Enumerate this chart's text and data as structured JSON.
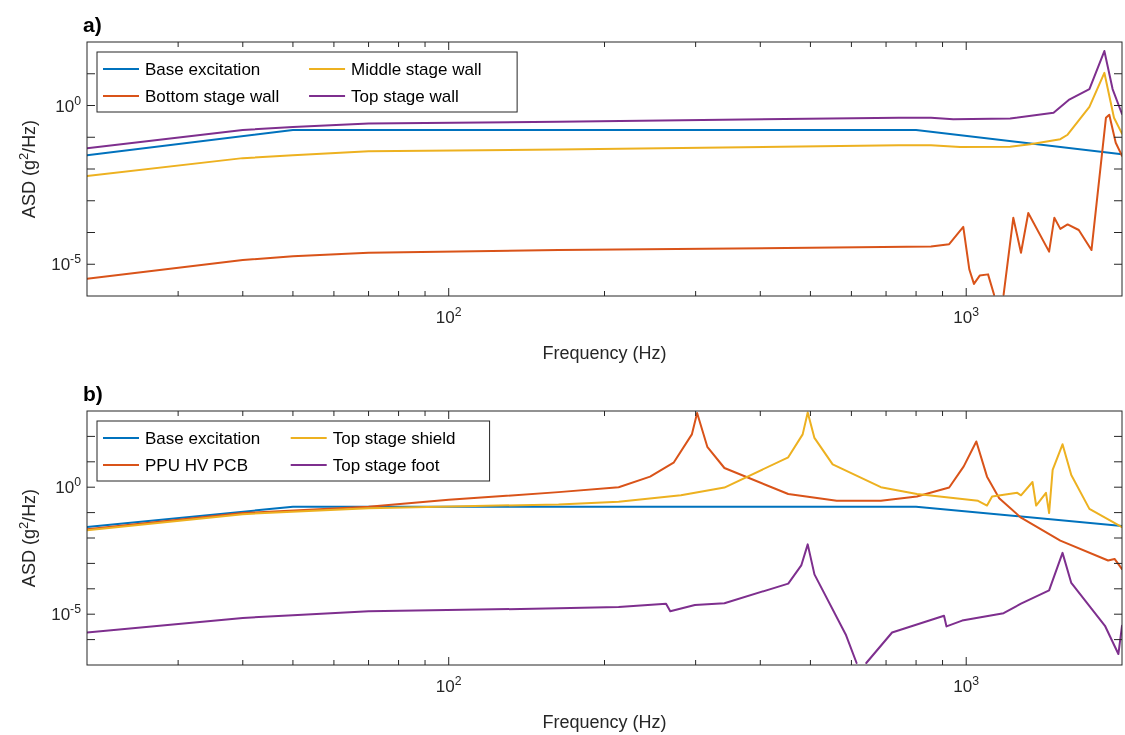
{
  "chart_data": [
    {
      "type": "line",
      "title": "a)",
      "xlabel": "Frequency (Hz)",
      "ylabel": "ASD (g$^{2}$/Hz)",
      "log": "xy",
      "grid": false,
      "legend": "top left",
      "xlim": [
        20,
        2000
      ],
      "ylim": [
        1e-06,
        100
      ],
      "xticks": [
        {
          "value": 30,
          "label": null
        },
        {
          "value": 40,
          "label": null
        },
        {
          "value": 50,
          "label": null
        },
        {
          "value": 60,
          "label": null
        },
        {
          "value": 70,
          "label": null
        },
        {
          "value": 80,
          "label": null
        },
        {
          "value": 90,
          "label": null
        },
        {
          "value": 100,
          "label": "10$^{2}$"
        },
        {
          "value": 200,
          "label": null
        },
        {
          "value": 300,
          "label": null
        },
        {
          "value": 400,
          "label": null
        },
        {
          "value": 500,
          "label": null
        },
        {
          "value": 600,
          "label": null
        },
        {
          "value": 700,
          "label": null
        },
        {
          "value": 800,
          "label": null
        },
        {
          "value": 900,
          "label": null
        },
        {
          "value": 1000,
          "label": "10$^{3}$"
        }
      ],
      "yticks": [
        {
          "value": 1e-05,
          "label": "10$^{-5}$"
        },
        {
          "value": 0.0001,
          "label": null
        },
        {
          "value": 0.001,
          "label": null
        },
        {
          "value": 0.01,
          "label": null
        },
        {
          "value": 0.1,
          "label": null
        },
        {
          "value": 1,
          "label": "10$^{0}$"
        },
        {
          "value": 10,
          "label": null
        }
      ],
      "series": [
        {
          "name": "Base excitation",
          "color": "#0072bd",
          "x": [
            20,
            50,
            800,
            2000
          ],
          "values": [
            0.027,
            0.17,
            0.17,
            0.029
          ]
        },
        {
          "name": "Bottom stage wall",
          "color": "#d95319",
          "x": [
            20,
            40,
            50,
            70,
            163,
            855,
            927,
            987,
            1014,
            1035,
            1062,
            1102,
            1132,
            1160,
            1181,
            1233,
            1276,
            1318,
            1446,
            1480,
            1520,
            1570,
            1650,
            1746,
            1862,
            1890,
            1945,
            2000
          ],
          "values": [
            3.5e-06,
            1.35e-05,
            1.8e-05,
            2.3e-05,
            2.8e-05,
            3.6e-05,
            4.3e-05,
            0.00015,
            6.8e-06,
            2.4e-06,
            4.4e-06,
            4.8e-06,
            1.1e-06,
            null,
            1.1e-06,
            0.00029,
            2.3e-05,
            0.00041,
            2.5e-05,
            0.00029,
            0.00013,
            0.00018,
            0.00012,
            2.8e-05,
            0.41,
            0.51,
            0.067,
            0.026
          ]
        },
        {
          "name": "Middle stage wall",
          "color": "#edb120",
          "x": [
            20,
            40,
            50,
            70,
            163,
            741,
            855,
            973,
            1216,
            1330,
            1520,
            1570,
            1730,
            1849,
            1930,
            2000
          ],
          "values": [
            0.006,
            0.022,
            0.027,
            0.036,
            0.041,
            0.056,
            0.056,
            0.049,
            0.05,
            0.06,
            0.087,
            0.12,
            0.91,
            10.7,
            0.41,
            0.13
          ]
        },
        {
          "name": "Top stage wall",
          "color": "#7e2f8e",
          "x": [
            20,
            40,
            50,
            70,
            163,
            741,
            855,
            944,
            1216,
            1475,
            1578,
            1730,
            1849,
            1918,
            2000
          ],
          "values": [
            0.045,
            0.17,
            0.21,
            0.27,
            0.31,
            0.41,
            0.41,
            0.37,
            0.39,
            0.59,
            1.5,
            3.3,
            52,
            3.3,
            0.54
          ]
        }
      ]
    },
    {
      "type": "line",
      "title": "b)",
      "xlabel": "Frequency (Hz)",
      "ylabel": "ASD (g$^{2}$/Hz)",
      "log": "xy",
      "grid": false,
      "legend": "top left",
      "xlim": [
        20,
        2000
      ],
      "ylim": [
        1e-07,
        1000
      ],
      "xticks": [
        {
          "value": 30,
          "label": null
        },
        {
          "value": 40,
          "label": null
        },
        {
          "value": 50,
          "label": null
        },
        {
          "value": 60,
          "label": null
        },
        {
          "value": 70,
          "label": null
        },
        {
          "value": 80,
          "label": null
        },
        {
          "value": 90,
          "label": null
        },
        {
          "value": 100,
          "label": "10$^{2}$"
        },
        {
          "value": 200,
          "label": null
        },
        {
          "value": 300,
          "label": null
        },
        {
          "value": 400,
          "label": null
        },
        {
          "value": 500,
          "label": null
        },
        {
          "value": 600,
          "label": null
        },
        {
          "value": 700,
          "label": null
        },
        {
          "value": 800,
          "label": null
        },
        {
          "value": 900,
          "label": null
        },
        {
          "value": 1000,
          "label": "10$^{3}$"
        }
      ],
      "yticks": [
        {
          "value": 1e-06,
          "label": null
        },
        {
          "value": 1e-05,
          "label": "10$^{-5}$"
        },
        {
          "value": 0.0001,
          "label": null
        },
        {
          "value": 0.001,
          "label": null
        },
        {
          "value": 0.01,
          "label": null
        },
        {
          "value": 0.1,
          "label": null
        },
        {
          "value": 1,
          "label": "10$^{0}$"
        },
        {
          "value": 10,
          "label": null
        },
        {
          "value": 100,
          "label": null
        }
      ],
      "series": [
        {
          "name": "Base excitation",
          "color": "#0072bd",
          "x": [
            20,
            50,
            800,
            2000
          ],
          "values": [
            0.027,
            0.17,
            0.17,
            0.03
          ]
        },
        {
          "name": "PPU HV PCB",
          "color": "#d95319",
          "x": [
            20,
            40,
            70,
            100,
            163,
            213,
            245,
            272,
            295,
            302,
            316,
            341,
            453,
            562,
            684,
            803,
            927,
            989,
            1046,
            1097,
            1158,
            1276,
            1520,
            1880,
            1935,
            2000
          ],
          "values": [
            0.022,
            0.096,
            0.17,
            0.32,
            0.64,
            1.0,
            2.6,
            9.2,
            120,
            830,
            39,
            5.7,
            0.54,
            0.29,
            0.29,
            0.43,
            0.97,
            6.6,
            63,
            2.6,
            0.37,
            0.063,
            0.0079,
            0.0013,
            0.0015,
            0.0006
          ]
        },
        {
          "name": "Top stage shield",
          "color": "#edb120",
          "x": [
            20,
            40,
            70,
            163,
            213,
            281,
            341,
            453,
            483,
            494,
            509,
            552,
            684,
            803,
            1054,
            1097,
            1122,
            1255,
            1276,
            1343,
            1365,
            1426,
            1446,
            1469,
            1535,
            1596,
            1730,
            2000
          ],
          "values": [
            0.02,
            0.087,
            0.15,
            0.21,
            0.27,
            0.48,
            0.97,
            15,
            120,
            880,
            87,
            7.9,
            1.0,
            0.54,
            0.29,
            0.19,
            0.43,
            0.6,
            0.48,
            1.6,
            0.19,
            0.6,
            0.096,
            4.8,
            49,
            3.0,
            0.14,
            0.027
          ]
        },
        {
          "name": "Top stage foot",
          "color": "#7e2f8e",
          "x": [
            20,
            40,
            50,
            70,
            163,
            213,
            263,
            268,
            299,
            341,
            453,
            480,
            494,
            509,
            585,
            614,
            628,
            641,
            719,
            906,
            916,
            982,
            1181,
            1276,
            1446,
            1535,
            1596,
            1854,
            1968,
            2000
          ],
          "values": [
            1.9e-06,
            7.1e-06,
            9.1e-06,
            1.3e-05,
            1.7e-05,
            1.9e-05,
            2.6e-05,
            1.3e-05,
            2.3e-05,
            2.7e-05,
            0.00016,
            0.00083,
            0.0056,
            0.00037,
            1.6e-06,
            1.2e-07,
            null,
            1.2e-07,
            1.9e-06,
            8.7e-06,
            3.3e-06,
            5.6e-06,
            1.1e-05,
            2.6e-05,
            8.7e-05,
            0.0026,
            0.00017,
            3.5e-06,
            2.7e-07,
            3.5e-06
          ]
        }
      ]
    }
  ]
}
